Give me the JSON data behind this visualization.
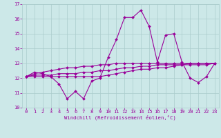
{
  "x": [
    0,
    1,
    2,
    3,
    4,
    5,
    6,
    7,
    8,
    9,
    10,
    11,
    12,
    13,
    14,
    15,
    16,
    17,
    18,
    19,
    20,
    21,
    22,
    23
  ],
  "line1": [
    12.1,
    12.4,
    12.3,
    12.1,
    11.6,
    10.6,
    11.1,
    10.6,
    11.8,
    12.0,
    13.4,
    14.6,
    16.1,
    16.1,
    16.6,
    15.5,
    13.1,
    14.9,
    15.0,
    13.1,
    12.0,
    11.7,
    12.1,
    13.0
  ],
  "line2": [
    12.1,
    12.1,
    12.1,
    12.1,
    12.1,
    12.1,
    12.1,
    12.1,
    12.1,
    12.1,
    12.2,
    12.3,
    12.4,
    12.5,
    12.6,
    12.6,
    12.7,
    12.7,
    12.8,
    12.9,
    12.9,
    12.9,
    12.9,
    13.0
  ],
  "line3": [
    12.1,
    12.2,
    12.2,
    12.2,
    12.3,
    12.3,
    12.3,
    12.4,
    12.4,
    12.5,
    12.5,
    12.6,
    12.7,
    12.7,
    12.8,
    12.8,
    12.9,
    12.9,
    12.9,
    12.9,
    13.0,
    13.0,
    13.0,
    13.0
  ],
  "line4": [
    12.1,
    12.3,
    12.4,
    12.5,
    12.6,
    12.7,
    12.7,
    12.8,
    12.8,
    12.9,
    12.9,
    13.0,
    13.0,
    13.0,
    13.0,
    13.0,
    13.0,
    13.0,
    13.0,
    13.0,
    13.0,
    13.0,
    13.0,
    13.0
  ],
  "line_color": "#990099",
  "bg_color": "#cce8e8",
  "grid_color": "#aacccc",
  "xlabel": "Windchill (Refroidissement éolien,°C)",
  "ylim": [
    10,
    17
  ],
  "xlim": [
    -0.5,
    23.5
  ],
  "yticks": [
    10,
    11,
    12,
    13,
    14,
    15,
    16,
    17
  ],
  "xticks": [
    0,
    1,
    2,
    3,
    4,
    5,
    6,
    7,
    8,
    9,
    10,
    11,
    12,
    13,
    14,
    15,
    16,
    17,
    18,
    19,
    20,
    21,
    22,
    23
  ],
  "tick_fontsize": 5.0,
  "xlabel_fontsize": 5.2,
  "linewidth": 0.8,
  "markersize": 2.0
}
